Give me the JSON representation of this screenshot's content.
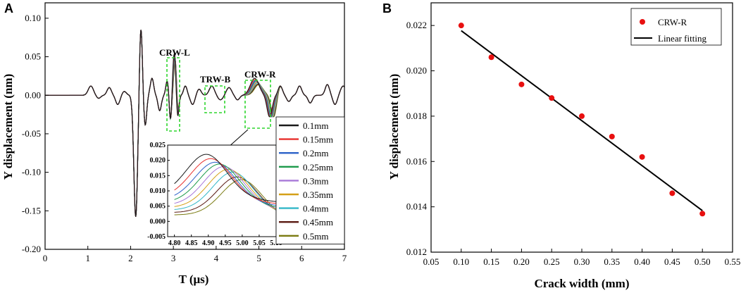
{
  "colors": {
    "0.1mm": "#1a1a1a",
    "0.15mm": "#e8302d",
    "0.2mm": "#2c62c8",
    "0.25mm": "#1c9a4a",
    "0.3mm": "#a878d8",
    "0.35mm": "#d4a018",
    "0.4mm": "#34b8c8",
    "0.45mm": "#5a1a12",
    "0.5mm": "#7a7a10",
    "marker": "#e81010",
    "fit": "#000000",
    "box": "#2fd62f"
  },
  "chart_data": [
    {
      "panel": "A",
      "type": "line",
      "xlabel": "T (μs)",
      "ylabel": "Y displacement (nm)",
      "xlim": [
        0,
        7
      ],
      "ylim": [
        -0.2,
        0.12
      ],
      "xticks": [
        "0",
        "1",
        "2",
        "3",
        "4",
        "5",
        "6",
        "7"
      ],
      "yticks": [
        "0.10",
        "0.05",
        "0.00",
        "-0.05",
        "-0.10",
        "-0.15",
        "-0.20"
      ],
      "annotations": [
        "CRW-L",
        "TRW-B",
        "CRW-R"
      ],
      "legend": [
        "0.1mm",
        "0.15mm",
        "0.2mm",
        "0.25mm",
        "0.3mm",
        "0.35mm",
        "0.4mm",
        "0.45mm",
        "0.5mm"
      ],
      "series_peak_amplitude": [
        0.022,
        0.0206,
        0.0194,
        0.0188,
        0.018,
        0.0171,
        0.0162,
        0.0146,
        0.0137
      ],
      "inset": {
        "xlim": [
          4.78,
          5.1
        ],
        "ylim": [
          -0.005,
          0.025
        ],
        "xticks": [
          "4.80",
          "4.85",
          "4.90",
          "4.95",
          "5.00",
          "5.05",
          "5.10"
        ],
        "yticks": [
          "0.025",
          "0.020",
          "0.015",
          "0.010",
          "0.005",
          "0.000",
          "-0.005"
        ]
      }
    },
    {
      "panel": "B",
      "type": "scatter",
      "xlabel": "Crack width (mm)",
      "ylabel": "Y displacement (nm)",
      "xlim": [
        0.05,
        0.55
      ],
      "ylim": [
        0.012,
        0.023
      ],
      "xticks": [
        "0.05",
        "0.10",
        "0.15",
        "0.20",
        "0.25",
        "0.30",
        "0.35",
        "0.40",
        "0.45",
        "0.50",
        "0.55"
      ],
      "yticks": [
        "0.022",
        "0.020",
        "0.018",
        "0.016",
        "0.014",
        "0.012"
      ],
      "legend": [
        "CRW-R",
        "Linear fitting"
      ],
      "series": [
        {
          "name": "CRW-R",
          "x": [
            0.1,
            0.15,
            0.2,
            0.25,
            0.3,
            0.35,
            0.4,
            0.45,
            0.5
          ],
          "y": [
            0.022,
            0.0206,
            0.0194,
            0.0188,
            0.018,
            0.0171,
            0.0162,
            0.0146,
            0.0137
          ]
        },
        {
          "name": "Linear fitting",
          "x": [
            0.1,
            0.5
          ],
          "y": [
            0.02177,
            0.01383
          ]
        }
      ]
    }
  ]
}
